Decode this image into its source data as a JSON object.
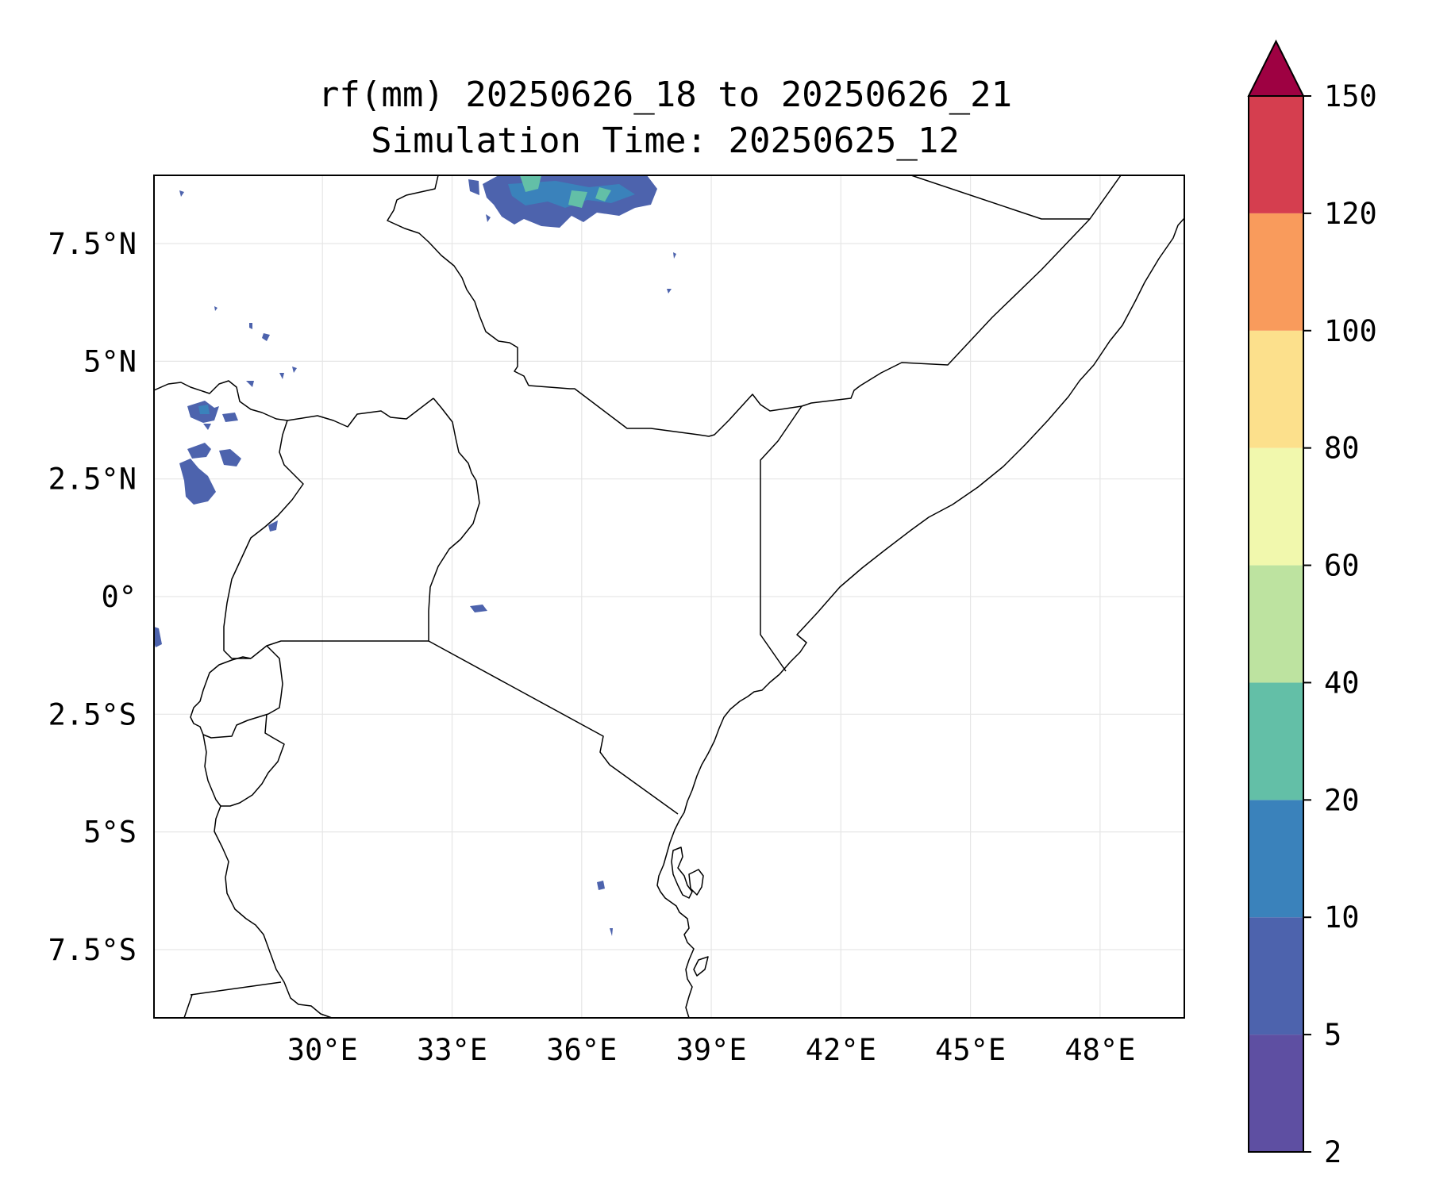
{
  "title_line1": "rf(mm) 20250626_18 to 20250626_21",
  "title_line2": "Simulation Time: 20250625_12",
  "map": {
    "lon_range": [
      26.1,
      49.95
    ],
    "lat_range": [
      -8.95,
      8.95
    ],
    "x_ticks": [
      {
        "value": 30,
        "label": "30°E"
      },
      {
        "value": 33,
        "label": "33°E"
      },
      {
        "value": 36,
        "label": "36°E"
      },
      {
        "value": 39,
        "label": "39°E"
      },
      {
        "value": 42,
        "label": "42°E"
      },
      {
        "value": 45,
        "label": "45°E"
      },
      {
        "value": 48,
        "label": "48°E"
      }
    ],
    "y_ticks": [
      {
        "value": 7.5,
        "label": "7.5°N"
      },
      {
        "value": 5,
        "label": "5°N"
      },
      {
        "value": 2.5,
        "label": "2.5°N"
      },
      {
        "value": 0,
        "label": "0°"
      },
      {
        "value": -2.5,
        "label": "2.5°S"
      },
      {
        "value": -5,
        "label": "5°S"
      },
      {
        "value": -7.5,
        "label": "7.5°S"
      }
    ],
    "gridlines": true
  },
  "colorbar": {
    "extend": "max",
    "extend_color": "#9e0142",
    "levels": [
      {
        "label": "2",
        "color": "#5e4fa2"
      },
      {
        "label": "5",
        "color": "#4d63ad"
      },
      {
        "label": "10",
        "color": "#3a82bb"
      },
      {
        "label": "20",
        "color": "#63bfa7"
      },
      {
        "label": "40",
        "color": "#bde3a0"
      },
      {
        "label": "60",
        "color": "#f1f8ad"
      },
      {
        "label": "80",
        "color": "#fce08c"
      },
      {
        "label": "100",
        "color": "#f99b5c"
      },
      {
        "label": "120",
        "color": "#d53e4f"
      },
      {
        "label": "150",
        "color": null
      }
    ]
  },
  "chart_data": {
    "type": "heatmap",
    "variable": "rf(mm)",
    "title": "rf(mm) 20250626_18 to 20250626_21",
    "subtitle": "Simulation Time: 20250625_12",
    "xlim": [
      26.1,
      49.95
    ],
    "ylim": [
      -8.95,
      8.95
    ],
    "color_levels": [
      2,
      5,
      10,
      20,
      40,
      60,
      80,
      100,
      120,
      150
    ],
    "rain_patches": [
      {
        "lon": 36.5,
        "lat": 8.6,
        "value": 10
      },
      {
        "lon": 37.1,
        "lat": 8.4,
        "value": 20
      },
      {
        "lon": 36.1,
        "lat": 8.7,
        "value": 20
      },
      {
        "lon": 29.2,
        "lat": 3.8,
        "value": 5
      },
      {
        "lon": 29.1,
        "lat": 3.0,
        "value": 5
      },
      {
        "lon": 29.0,
        "lat": 2.3,
        "value": 5
      },
      {
        "lon": 29.7,
        "lat": 2.8,
        "value": 5
      },
      {
        "lon": 30.8,
        "lat": 1.5,
        "value": 5
      },
      {
        "lon": 35.0,
        "lat": -0.25,
        "value": 2
      },
      {
        "lon": 37.6,
        "lat": -6.1,
        "value": 2
      }
    ]
  }
}
